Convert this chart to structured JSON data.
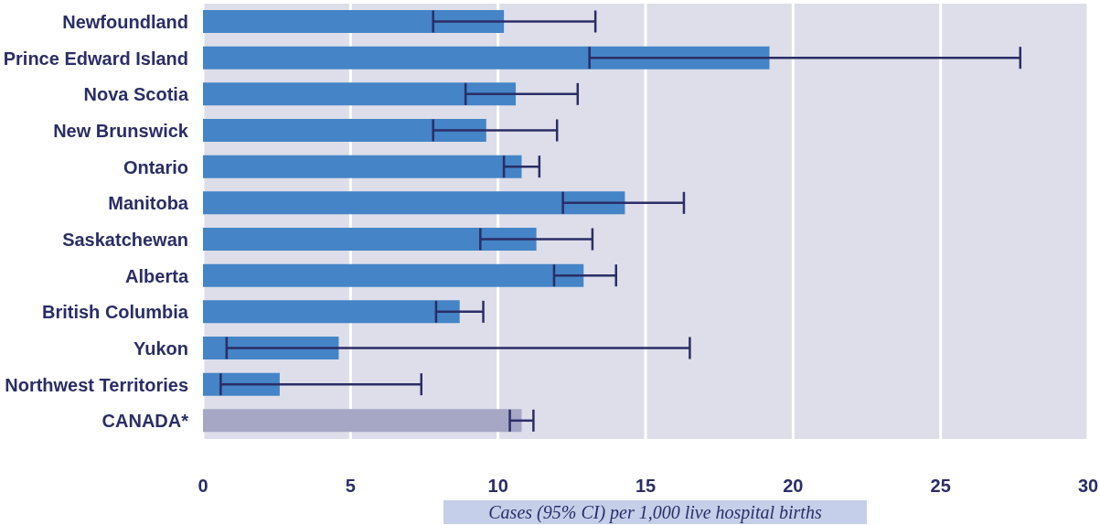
{
  "chart_data": {
    "type": "bar",
    "orientation": "horizontal",
    "xlabel": "Cases (95% CI) per 1,000 live hospital births",
    "categories": [
      "Newfoundland",
      "Prince Edward Island",
      "Nova Scotia",
      "New Brunswick",
      "Ontario",
      "Manitoba",
      "Saskatchewan",
      "Alberta",
      "British Columbia",
      "Yukon",
      "Northwest Territories",
      "CANADA*"
    ],
    "values": [
      10.2,
      19.2,
      10.6,
      9.6,
      10.8,
      14.3,
      11.3,
      12.9,
      8.7,
      4.6,
      2.6,
      10.8
    ],
    "errors": [
      [
        7.8,
        13.3
      ],
      [
        13.1,
        27.7
      ],
      [
        8.9,
        12.7
      ],
      [
        7.8,
        12.0
      ],
      [
        10.2,
        11.4
      ],
      [
        12.2,
        16.3
      ],
      [
        9.4,
        13.2
      ],
      [
        11.9,
        14.0
      ],
      [
        7.9,
        9.5
      ],
      [
        0.8,
        16.5
      ],
      [
        0.6,
        7.4
      ],
      [
        10.4,
        11.2
      ]
    ],
    "colors": [
      "#4584c6",
      "#4584c6",
      "#4584c6",
      "#4584c6",
      "#4584c6",
      "#4584c6",
      "#4584c6",
      "#4584c6",
      "#4584c6",
      "#4584c6",
      "#4584c6",
      "#a6a7c4"
    ],
    "xlim": [
      0,
      30
    ],
    "xticks": [
      0,
      5,
      10,
      15,
      20,
      25,
      30
    ],
    "grid": "x"
  }
}
